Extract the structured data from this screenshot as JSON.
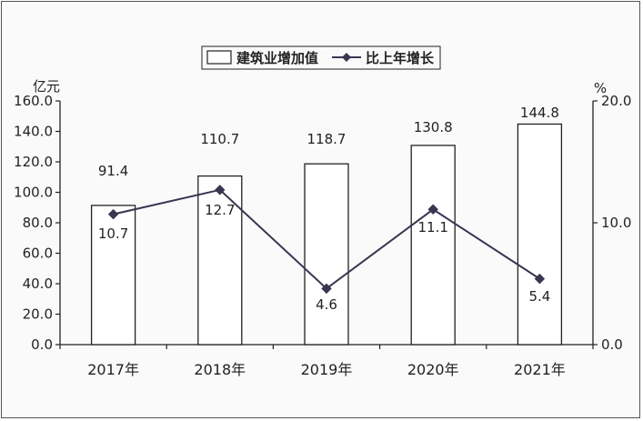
{
  "chart_data": {
    "type": "bar",
    "categories": [
      "2017年",
      "2018年",
      "2019年",
      "2020年",
      "2021年"
    ],
    "series": [
      {
        "name": "建筑业增加值",
        "type": "bar",
        "axis": "left",
        "values": [
          91.4,
          110.7,
          118.7,
          130.8,
          144.8
        ],
        "labels": [
          "91.4",
          "110.7",
          "118.7",
          "130.8",
          "144.8"
        ]
      },
      {
        "name": "比上年增长",
        "type": "line",
        "axis": "right",
        "values": [
          10.7,
          12.7,
          4.6,
          11.1,
          5.4
        ],
        "labels": [
          "10.7",
          "12.7",
          "4.6",
          "11.1",
          "5.4"
        ]
      }
    ],
    "left_axis": {
      "unit": "亿元",
      "ylim": [
        0,
        160
      ],
      "ticks": [
        "0.0",
        "20.0",
        "40.0",
        "60.0",
        "80.0",
        "100.0",
        "120.0",
        "140.0",
        "160.0"
      ]
    },
    "right_axis": {
      "unit": "%",
      "ylim": [
        0,
        20
      ],
      "ticks": [
        "0.0",
        "10.0",
        "20.0"
      ]
    },
    "legend": {
      "position": "top-right"
    },
    "grid": false
  }
}
